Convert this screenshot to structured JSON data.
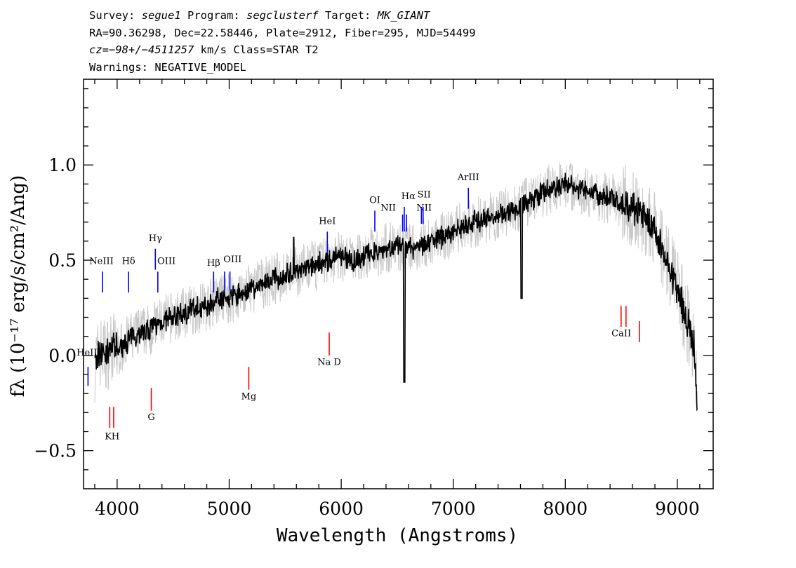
{
  "header": {
    "line1": {
      "survey_label": "Survey: ",
      "survey": "segue1",
      "program_label": " Program: ",
      "program": "segclusterf",
      "target_label": " Target: ",
      "target": "MK_GIANT"
    },
    "line2": "RA=90.36298, Dec=22.58446, Plate=2912, Fiber=295, MJD=54499",
    "line3": {
      "cz_label": "cz=",
      "cz": "−98+/−4511257",
      "cz_rest": " km/s Class=STAR T2"
    },
    "line4": "Warnings: NEGATIVE_MODEL"
  },
  "chart_data": {
    "type": "line",
    "xlabel": "Wavelength (Angstroms)",
    "ylabel": "fλ (10⁻¹⁷ erg/s/cm²/Ang)",
    "xlim": [
      3700,
      9320
    ],
    "ylim": [
      -0.7,
      1.45
    ],
    "x_ticks": [
      4000,
      5000,
      6000,
      7000,
      8000,
      9000
    ],
    "x_tick_labels": [
      "4000",
      "5000",
      "6000",
      "7000",
      "8000",
      "9000"
    ],
    "y_ticks": [
      -0.5,
      0.0,
      0.5,
      1.0
    ],
    "y_tick_labels": [
      "−0.5",
      "0.0",
      "0.5",
      "1.0"
    ],
    "grid": false,
    "colors": {
      "spectrum": "#000000",
      "error": "#c8c8c8",
      "emission": "#0000ff",
      "absorption": "#ff0000"
    },
    "series": [
      {
        "kind": "spectrum",
        "x": [
          3800,
          3850,
          3900,
          3950,
          4000,
          4100,
          4200,
          4300,
          4400,
          4500,
          4600,
          4700,
          4800,
          4900,
          5000,
          5100,
          5200,
          5300,
          5400,
          5500,
          5600,
          5700,
          5800,
          5900,
          6000,
          6100,
          6200,
          6300,
          6400,
          6500,
          6600,
          6700,
          6800,
          6900,
          7000,
          7100,
          7200,
          7300,
          7400,
          7500,
          7600,
          7700,
          7800,
          7900,
          8000,
          8100,
          8200,
          8300,
          8400,
          8500,
          8600,
          8700,
          8800,
          8900,
          9000,
          9050,
          9100,
          9150,
          9180
        ],
        "y": [
          -0.05,
          0.02,
          0.0,
          0.05,
          0.02,
          0.08,
          0.12,
          0.14,
          0.18,
          0.2,
          0.22,
          0.25,
          0.26,
          0.3,
          0.3,
          0.32,
          0.35,
          0.38,
          0.4,
          0.42,
          0.44,
          0.46,
          0.48,
          0.5,
          0.52,
          0.5,
          0.52,
          0.55,
          0.56,
          0.57,
          0.56,
          0.58,
          0.6,
          0.62,
          0.65,
          0.68,
          0.7,
          0.72,
          0.74,
          0.76,
          0.78,
          0.82,
          0.85,
          0.88,
          0.9,
          0.88,
          0.86,
          0.84,
          0.82,
          0.8,
          0.78,
          0.72,
          0.65,
          0.5,
          0.35,
          0.25,
          0.15,
          0.05,
          -0.3
        ]
      }
    ],
    "emission_lines": [
      {
        "label": "HeII",
        "wave": 3740,
        "y_top": -0.06,
        "y_bot": -0.16,
        "label_y": 0.0,
        "label_x": 3730
      },
      {
        "label": "NeIII",
        "wave": 3869,
        "y_top": 0.44,
        "y_bot": 0.33,
        "label_y": 0.48,
        "label_x": 3860
      },
      {
        "label": "Hδ",
        "wave": 4102,
        "y_top": 0.44,
        "y_bot": 0.33,
        "label_y": 0.48,
        "label_x": 4102
      },
      {
        "label": "Hγ",
        "wave": 4341,
        "y_top": 0.56,
        "y_bot": 0.45,
        "label_y": 0.6,
        "label_x": 4341
      },
      {
        "label": "OIII",
        "wave": 4363,
        "y_top": 0.44,
        "y_bot": 0.33,
        "label_y": 0.48,
        "label_x": 4440
      },
      {
        "label": "Hβ",
        "wave": 4861,
        "y_top": 0.44,
        "y_bot": 0.33,
        "label_y": 0.47,
        "label_x": 4861
      },
      {
        "label": "OIII",
        "wave": 4959,
        "y_top": 0.44,
        "y_bot": 0.34,
        "label_y": 0.49,
        "label_x": 5030
      },
      {
        "label": "OIII",
        "wave": 5007,
        "y_top": 0.44,
        "y_bot": 0.34,
        "label_y": null,
        "label_x": null
      },
      {
        "label": "HeI",
        "wave": 5876,
        "y_top": 0.65,
        "y_bot": 0.54,
        "label_y": 0.69,
        "label_x": 5876
      },
      {
        "label": "OI",
        "wave": 6300,
        "y_top": 0.76,
        "y_bot": 0.65,
        "label_y": 0.8,
        "label_x": 6300
      },
      {
        "label": "NII",
        "wave": 6548,
        "y_top": 0.74,
        "y_bot": 0.65,
        "label_y": 0.76,
        "label_x": 6420
      },
      {
        "label": "Hα",
        "wave": 6563,
        "y_top": 0.78,
        "y_bot": 0.65,
        "label_y": 0.82,
        "label_x": 6600
      },
      {
        "label": "NII",
        "wave": 6583,
        "y_top": 0.74,
        "y_bot": 0.65,
        "label_y": 0.76,
        "label_x": 6740
      },
      {
        "label": "SII",
        "wave": 6716,
        "y_top": 0.78,
        "y_bot": 0.69,
        "label_y": 0.83,
        "label_x": 6740
      },
      {
        "label": "SII",
        "wave": 6731,
        "y_top": 0.78,
        "y_bot": 0.69,
        "label_y": null,
        "label_x": null
      },
      {
        "label": "ArIII",
        "wave": 7135,
        "y_top": 0.88,
        "y_bot": 0.77,
        "label_y": 0.92,
        "label_x": 7135
      }
    ],
    "absorption_lines": [
      {
        "label": "K",
        "wave": 3934,
        "y_top": -0.27,
        "y_bot": -0.38,
        "label_y": -0.44,
        "label_x": 3920
      },
      {
        "label": "H",
        "wave": 3969,
        "y_top": -0.27,
        "y_bot": -0.38,
        "label_y": -0.44,
        "label_x": 3985
      },
      {
        "label": "G",
        "wave": 4305,
        "y_top": -0.17,
        "y_bot": -0.29,
        "label_y": -0.34,
        "label_x": 4305
      },
      {
        "label": "Mg",
        "wave": 5175,
        "y_top": -0.06,
        "y_bot": -0.18,
        "label_y": -0.23,
        "label_x": 5175
      },
      {
        "label": "Na D",
        "wave": 5893,
        "y_top": 0.12,
        "y_bot": 0.0,
        "label_y": -0.05,
        "label_x": 5893
      },
      {
        "label": "CaII",
        "wave": 8498,
        "y_top": 0.26,
        "y_bot": 0.15,
        "label_y": 0.1,
        "label_x": 8500
      },
      {
        "label": "CaII",
        "wave": 8542,
        "y_top": 0.26,
        "y_bot": 0.15,
        "label_y": null,
        "label_x": null
      },
      {
        "label": "CaII",
        "wave": 8662,
        "y_top": 0.18,
        "y_bot": 0.07,
        "label_y": null,
        "label_x": null
      }
    ]
  }
}
